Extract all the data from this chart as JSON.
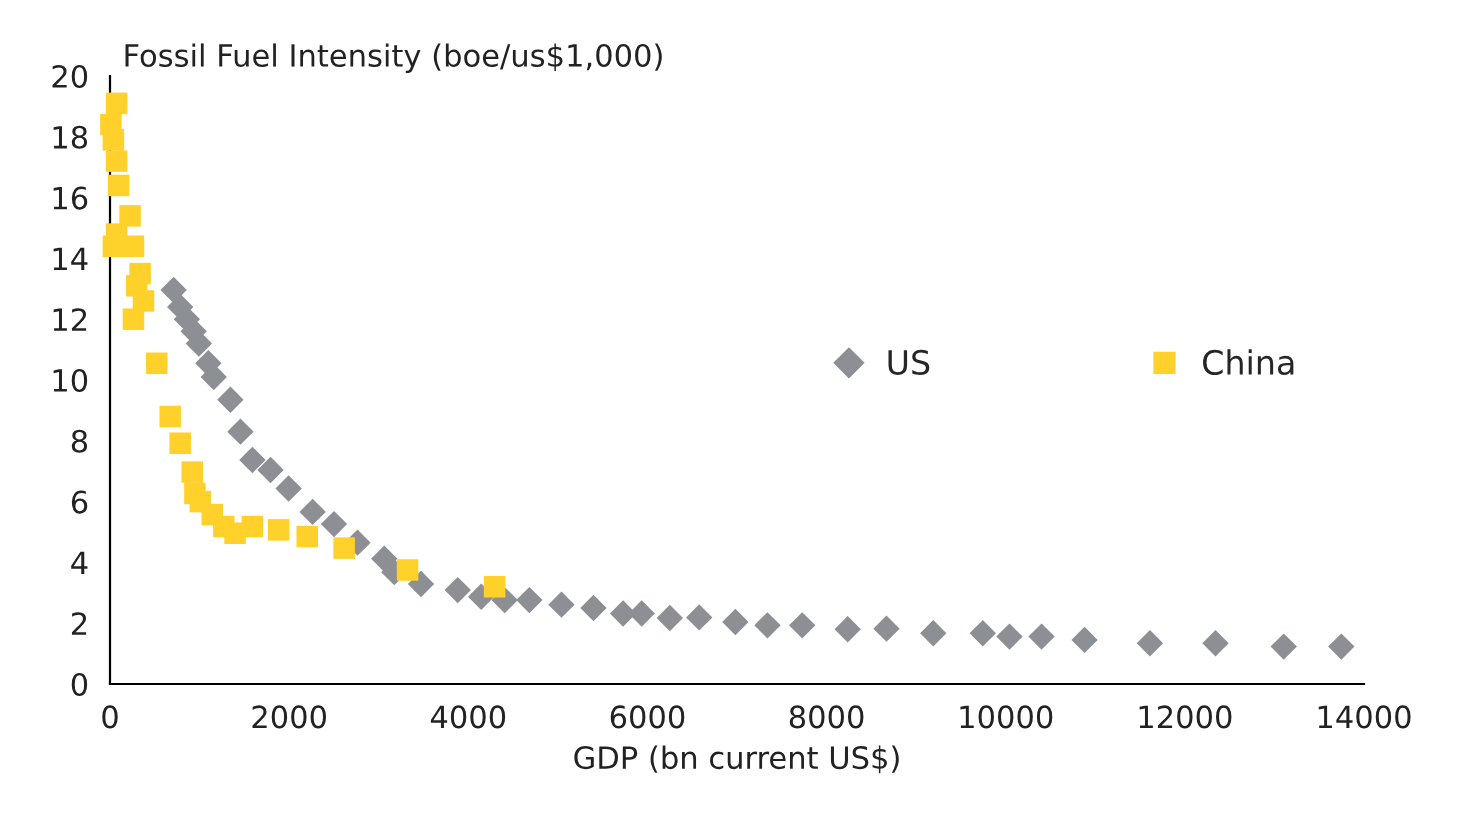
{
  "chart_data": {
    "type": "scatter",
    "ylabel": "Fossil Fuel Intensity (boe/us$1,000)",
    "xlabel": "GDP (bn current US$)",
    "xlim": [
      0,
      14000
    ],
    "xticks": [
      0,
      2000,
      4000,
      6000,
      8000,
      10000,
      12000,
      14000
    ],
    "ylim": [
      0,
      20
    ],
    "yticks": [
      0,
      2,
      4,
      6,
      8,
      10,
      12,
      14,
      16,
      18,
      20
    ],
    "grid": false,
    "legend": "top right",
    "series": [
      {
        "name": "US",
        "color": "#8c8f94",
        "marker": "diamond",
        "x": [
          710,
          784,
          858,
          934,
          992,
          1098,
          1158,
          1344,
          1456,
          1590,
          1792,
          1994,
          2262,
          2501,
          2763,
          3062,
          3174,
          3472,
          3882,
          4144,
          4406,
          4682,
          5040,
          5398,
          5728,
          5936,
          6250,
          6578,
          6982,
          7340,
          7728,
          8236,
          8669,
          9191,
          9744,
          10042,
          10400,
          10880,
          11610,
          12342,
          13104,
          13747
        ],
        "values": [
          12.96,
          12.4,
          12.0,
          11.6,
          11.2,
          10.55,
          10.1,
          9.35,
          8.3,
          7.37,
          7.04,
          6.43,
          5.66,
          5.26,
          4.65,
          4.12,
          3.68,
          3.29,
          3.09,
          2.87,
          2.76,
          2.76,
          2.61,
          2.5,
          2.32,
          2.32,
          2.17,
          2.19,
          2.04,
          1.93,
          1.93,
          1.8,
          1.82,
          1.67,
          1.67,
          1.56,
          1.56,
          1.45,
          1.34,
          1.34,
          1.23,
          1.23
        ]
      },
      {
        "name": "China",
        "color": "#ffd12a",
        "marker": "square",
        "x": [
          74,
          10,
          38,
          74,
          96,
          224,
          74,
          38,
          262,
          336,
          298,
          374,
          262,
          522,
          672,
          784,
          918,
          948,
          1008,
          1142,
          1270,
          1396,
          1590,
          1882,
          2202,
          2614,
          3322,
          4294
        ],
        "values": [
          19.1,
          18.4,
          17.9,
          17.2,
          16.4,
          15.4,
          14.8,
          14.4,
          14.4,
          13.5,
          13.1,
          12.6,
          12.0,
          10.55,
          8.8,
          7.92,
          6.97,
          6.27,
          6.0,
          5.57,
          5.18,
          4.96,
          5.18,
          5.07,
          4.85,
          4.47,
          3.75,
          3.2
        ]
      }
    ]
  }
}
